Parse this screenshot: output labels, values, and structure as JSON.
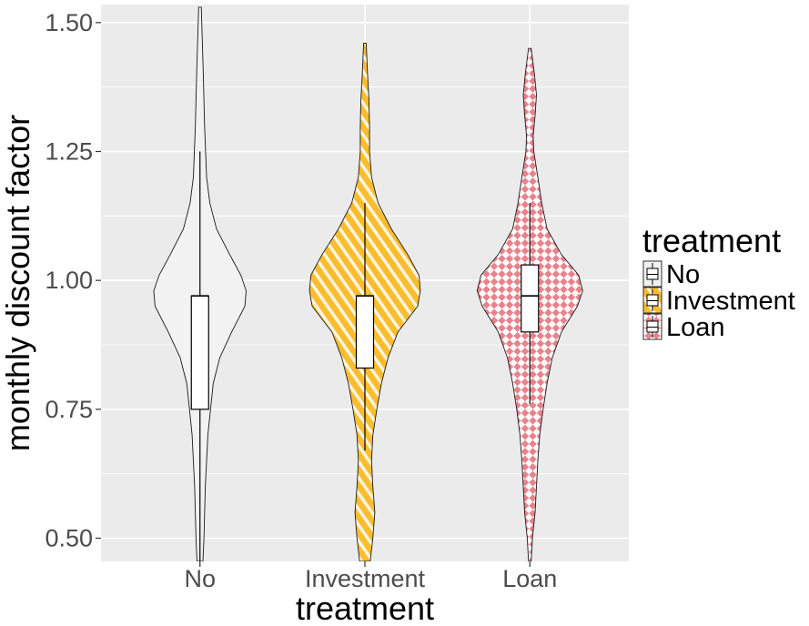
{
  "chart_data": {
    "type": "violin",
    "xlabel": "treatment",
    "ylabel": "monthly discount factor",
    "ylim": [
      0.455,
      1.535
    ],
    "yticks": [
      0.5,
      0.75,
      1.0,
      1.25,
      1.5
    ],
    "ytick_labels": [
      "0.50",
      "0.75",
      "1.00",
      "1.25",
      "1.50"
    ],
    "categories": [
      "No",
      "Investment",
      "Loan"
    ],
    "grid": true,
    "legend": {
      "title": "treatment",
      "placement": "right",
      "entries": [
        "No",
        "Investment",
        "Loan"
      ]
    },
    "series": [
      {
        "name": "No",
        "fill": "#f2f2f2",
        "pattern": "none",
        "violin_profile": [
          [
            0.455,
            0.045
          ],
          [
            0.5,
            0.06
          ],
          [
            0.6,
            0.08
          ],
          [
            0.7,
            0.12
          ],
          [
            0.8,
            0.2
          ],
          [
            0.85,
            0.3
          ],
          [
            0.9,
            0.48
          ],
          [
            0.95,
            0.68
          ],
          [
            0.98,
            0.7
          ],
          [
            1.01,
            0.62
          ],
          [
            1.05,
            0.45
          ],
          [
            1.1,
            0.25
          ],
          [
            1.15,
            0.15
          ],
          [
            1.2,
            0.1
          ],
          [
            1.3,
            0.07
          ],
          [
            1.4,
            0.05
          ],
          [
            1.53,
            0.02
          ]
        ],
        "box": {
          "q1": 0.75,
          "median": 0.97,
          "q3": 0.97,
          "whisker_low": 0.455,
          "whisker_high": 1.25
        }
      },
      {
        "name": "Investment",
        "fill": "#fbbd2e",
        "pattern": "diagonal-stripes",
        "violin_profile": [
          [
            0.455,
            0.08
          ],
          [
            0.5,
            0.12
          ],
          [
            0.55,
            0.15
          ],
          [
            0.6,
            0.12
          ],
          [
            0.65,
            0.1
          ],
          [
            0.7,
            0.12
          ],
          [
            0.75,
            0.18
          ],
          [
            0.8,
            0.25
          ],
          [
            0.85,
            0.35
          ],
          [
            0.9,
            0.5
          ],
          [
            0.95,
            0.8
          ],
          [
            0.98,
            0.84
          ],
          [
            1.01,
            0.82
          ],
          [
            1.05,
            0.65
          ],
          [
            1.1,
            0.4
          ],
          [
            1.15,
            0.2
          ],
          [
            1.2,
            0.1
          ],
          [
            1.25,
            0.07
          ],
          [
            1.3,
            0.07
          ],
          [
            1.35,
            0.06
          ],
          [
            1.4,
            0.04
          ],
          [
            1.46,
            0.02
          ]
        ],
        "box": {
          "q1": 0.83,
          "median": 0.97,
          "q3": 0.97,
          "whisker_low": 0.67,
          "whisker_high": 1.15
        }
      },
      {
        "name": "Loan",
        "fill": "#e8828c",
        "pattern": "checker",
        "violin_profile": [
          [
            0.455,
            0.02
          ],
          [
            0.5,
            0.04
          ],
          [
            0.55,
            0.08
          ],
          [
            0.6,
            0.1
          ],
          [
            0.65,
            0.12
          ],
          [
            0.7,
            0.15
          ],
          [
            0.75,
            0.2
          ],
          [
            0.8,
            0.26
          ],
          [
            0.85,
            0.34
          ],
          [
            0.9,
            0.48
          ],
          [
            0.95,
            0.72
          ],
          [
            0.98,
            0.8
          ],
          [
            1.01,
            0.74
          ],
          [
            1.05,
            0.48
          ],
          [
            1.1,
            0.26
          ],
          [
            1.15,
            0.18
          ],
          [
            1.2,
            0.12
          ],
          [
            1.25,
            0.06
          ],
          [
            1.28,
            0.05
          ],
          [
            1.32,
            0.08
          ],
          [
            1.36,
            0.1
          ],
          [
            1.4,
            0.07
          ],
          [
            1.45,
            0.02
          ]
        ],
        "box": {
          "q1": 0.9,
          "median": 0.97,
          "q3": 1.03,
          "whisker_low": 0.76,
          "whisker_high": 1.15
        }
      }
    ]
  }
}
